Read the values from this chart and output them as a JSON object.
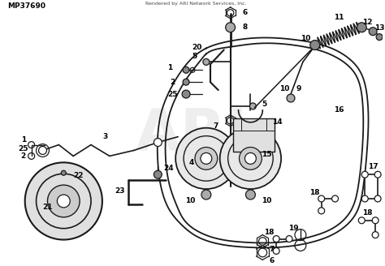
{
  "background_color": "#ffffff",
  "line_color": "#1a1a1a",
  "label_color": "#000000",
  "watermark_color": "#c8c8c8",
  "watermark_text": "ARI",
  "bottom_left_text": "MP37690",
  "bottom_right_text": "Rendered by ARI Network Services, Inc.",
  "fig_width": 4.74,
  "fig_height": 3.28,
  "dpi": 100
}
